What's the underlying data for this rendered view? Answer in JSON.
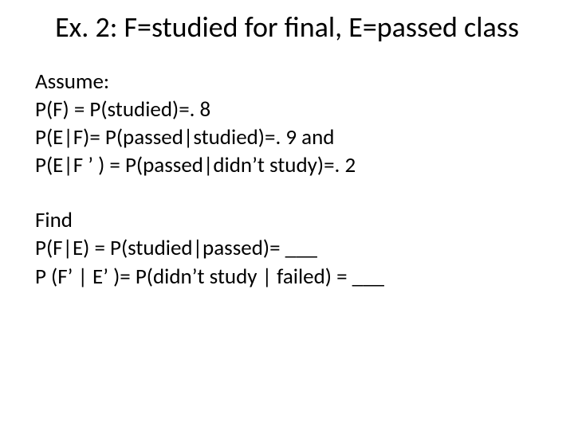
{
  "title": "Ex. 2:  F=studied for final, E=passed class",
  "assume": {
    "heading": "Assume:",
    "line1": "P(F) = P(studied)=. 8",
    "line2": "P(E|F)= P(passed|studied)=. 9   and",
    "line3": "P(E|F ’ ) = P(passed|didn’t study)=. 2"
  },
  "find": {
    "heading": "Find",
    "line1": "P(F|E) = P(studied|passed)= ___",
    "line2": "P (F’ | E’ )=   P(didn’t study | failed) = ___"
  },
  "colors": {
    "text": "#000000",
    "background": "#ffffff"
  },
  "typography": {
    "title_fontsize": 36,
    "body_fontsize": 27,
    "font_family": "Calibri"
  }
}
